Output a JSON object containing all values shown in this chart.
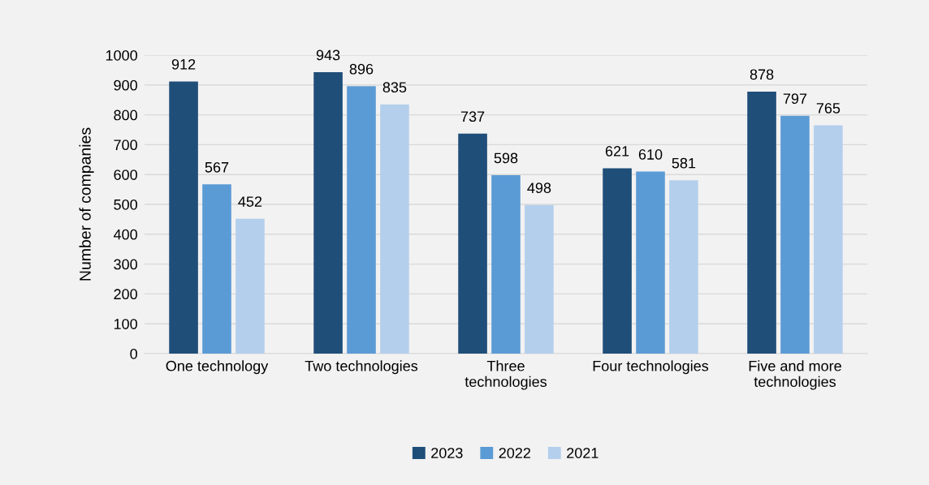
{
  "chart_data": {
    "type": "bar",
    "ylabel": "Number of companies",
    "categories": [
      "One technology",
      "Two technologies",
      "Three\ntechnologies",
      "Four technologies",
      "Five and more\ntechnologies"
    ],
    "series": [
      {
        "name": "2023",
        "color": "#1f4e79",
        "values": [
          912,
          943,
          737,
          621,
          878
        ]
      },
      {
        "name": "2022",
        "color": "#5b9bd5",
        "values": [
          567,
          896,
          598,
          610,
          797
        ]
      },
      {
        "name": "2021",
        "color": "#b4cfec",
        "values": [
          452,
          835,
          498,
          581,
          765
        ]
      }
    ],
    "ylim": [
      0,
      1000
    ],
    "yticks": [
      0,
      100,
      200,
      300,
      400,
      500,
      600,
      700,
      800,
      900,
      1000
    ],
    "grid": "y",
    "legend": "bottom",
    "data_labels": true
  }
}
